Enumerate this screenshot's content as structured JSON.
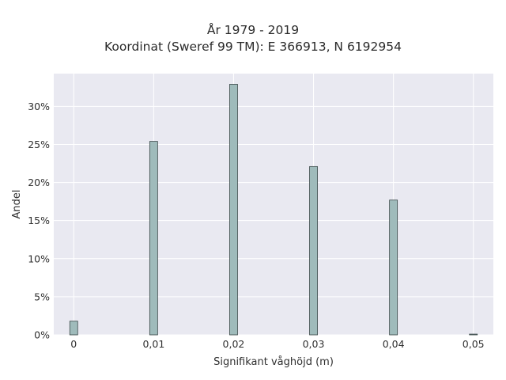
{
  "chart_data": {
    "type": "bar",
    "title_lines": [
      "År 1979 - 2019",
      "Koordinat (Sweref 99 TM): E 366913, N 6192954"
    ],
    "xlabel": "Signifikant våghöjd (m)",
    "ylabel": "Andel",
    "x": [
      0,
      0.01,
      0.02,
      0.03,
      0.04,
      0.05
    ],
    "values": [
      1.8,
      25.4,
      32.9,
      22.1,
      17.7,
      0.1
    ],
    "xlim": [
      -0.0025,
      0.0525
    ],
    "ylim": [
      0,
      34.3
    ],
    "x_ticks": [
      0,
      0.01,
      0.02,
      0.03,
      0.04,
      0.05
    ],
    "x_tick_labels": [
      "0",
      "0,01",
      "0,02",
      "0,03",
      "0,04",
      "0,05"
    ],
    "y_ticks": [
      0,
      5,
      10,
      15,
      20,
      25,
      30
    ],
    "y_tick_labels": [
      "0%",
      "5%",
      "10%",
      "15%",
      "20%",
      "25%",
      "30%"
    ],
    "grid": true,
    "colors": {
      "plot_background": "#e9e9f1",
      "grid": "#ffffff",
      "bar_fill": "#9fbbbb",
      "bar_edge": "#3a4848"
    }
  }
}
